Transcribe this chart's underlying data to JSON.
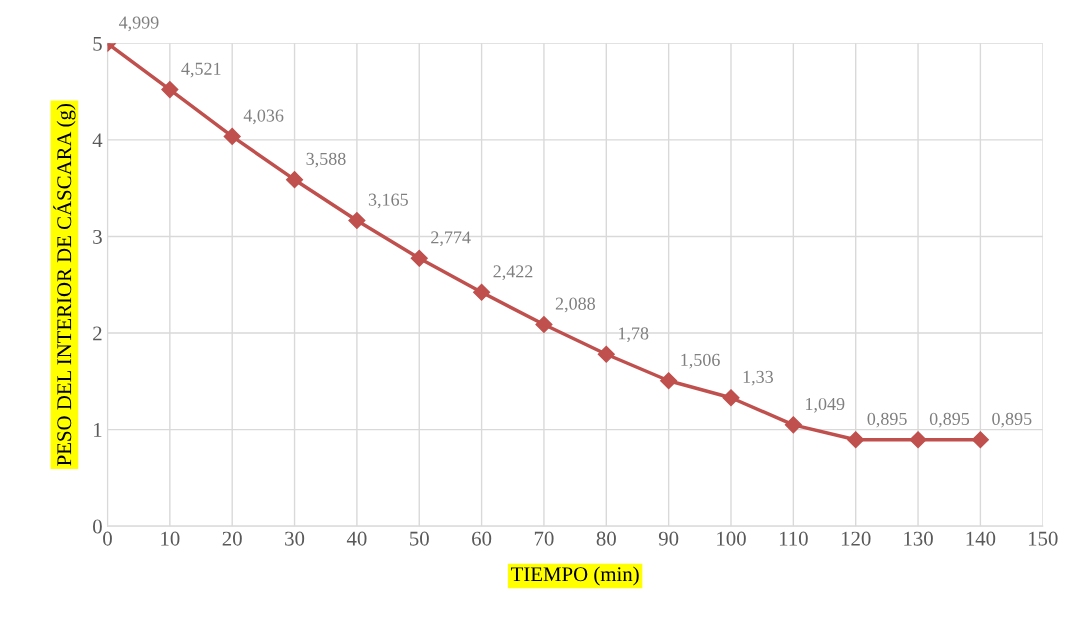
{
  "chart_data": {
    "type": "line",
    "xlabel": "TIEMPO (min)",
    "ylabel": "PESO DEL INTERIOR DE CÁSCARA (g)",
    "x": [
      0,
      10,
      20,
      30,
      40,
      50,
      60,
      70,
      80,
      90,
      100,
      110,
      120,
      130,
      140
    ],
    "series": [
      {
        "color": "#c0504d",
        "values": [
          4.999,
          4.521,
          4.036,
          3.588,
          3.165,
          2.774,
          2.422,
          2.088,
          1.78,
          1.506,
          1.33,
          1.049,
          0.895,
          0.895,
          0.895
        ],
        "value_labels": [
          "4,999",
          "4,521",
          "4,036",
          "3,588",
          "3,165",
          "2,774",
          "2,422",
          "2,088",
          "1,78",
          "1,506",
          "1,33",
          "1,049",
          "0,895",
          "0,895",
          "0,895"
        ]
      }
    ],
    "xlim": [
      0,
      150
    ],
    "xticks": [
      0,
      10,
      20,
      30,
      40,
      50,
      60,
      70,
      80,
      90,
      100,
      110,
      120,
      130,
      140,
      150
    ],
    "ylim": [
      0,
      5
    ],
    "yticks": [
      0,
      1,
      2,
      3,
      4,
      5
    ],
    "grid": true,
    "marker": "diamond",
    "line_style": "solid"
  }
}
